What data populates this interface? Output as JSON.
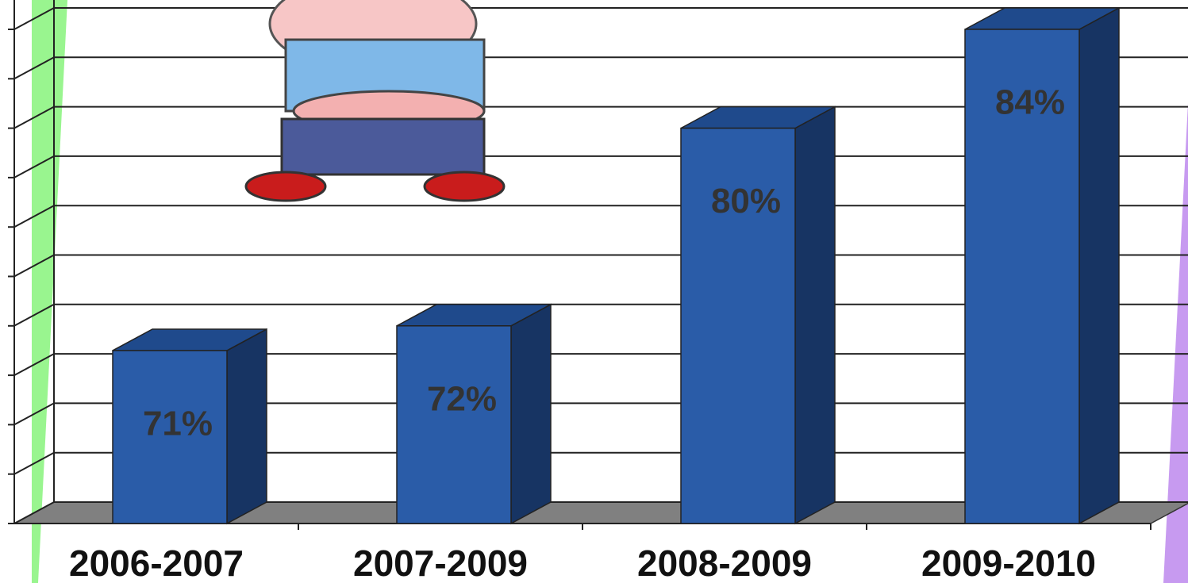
{
  "chart_data": {
    "type": "bar3d",
    "categories": [
      "2006-2007",
      "2007-2009",
      "2008-2009",
      "2009-2010"
    ],
    "values": [
      71,
      72,
      80,
      84
    ],
    "value_labels": [
      "71%",
      "72%",
      "80%",
      "84%"
    ],
    "color": "#2a5ca8",
    "ylim": [
      64,
      84
    ],
    "yticks": [
      64,
      66,
      68,
      70,
      72,
      74,
      76,
      78,
      80,
      82,
      84
    ],
    "grid": true
  }
}
